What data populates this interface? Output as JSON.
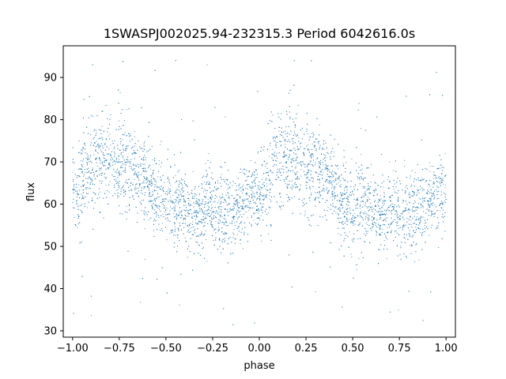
{
  "chart_data": {
    "type": "scatter",
    "title": "1SWASPJ002025.94-232315.3 Period 6042616.0s",
    "xlabel": "phase",
    "ylabel": "flux",
    "xlim": [
      -1.05,
      1.05
    ],
    "ylim": [
      28.5,
      97.5
    ],
    "x_ticks": [
      -1.0,
      -0.75,
      -0.5,
      -0.25,
      0.0,
      0.25,
      0.5,
      0.75,
      1.0
    ],
    "x_tick_labels": [
      "−1.00",
      "−0.75",
      "−0.50",
      "−0.25",
      "0.00",
      "0.25",
      "0.50",
      "0.75",
      "1.00"
    ],
    "y_ticks": [
      30,
      40,
      50,
      60,
      70,
      80,
      90
    ],
    "y_tick_labels": [
      "30",
      "40",
      "50",
      "60",
      "70",
      "80",
      "90"
    ],
    "grid": false,
    "marker_color": "#1f77b4",
    "series": [
      {
        "name": "",
        "phase": [
          -1.0,
          -0.97,
          -0.94,
          -0.91,
          -0.88,
          -0.85,
          -0.82,
          -0.79,
          -0.76,
          -0.73,
          -0.7,
          -0.67,
          -0.64,
          -0.61,
          -0.58,
          -0.55,
          -0.52,
          -0.49,
          -0.46,
          -0.43,
          -0.4,
          -0.37,
          -0.34,
          -0.31,
          -0.28,
          -0.25,
          -0.22,
          -0.19,
          -0.16,
          -0.13,
          -0.1,
          -0.07,
          -0.04,
          -0.01,
          0.02,
          0.05,
          0.08,
          0.11,
          0.14,
          0.17,
          0.2,
          0.23,
          0.26,
          0.29,
          0.32,
          0.35,
          0.38,
          0.41,
          0.44,
          0.47,
          0.5,
          0.53,
          0.56,
          0.59,
          0.62,
          0.65,
          0.68,
          0.71,
          0.74,
          0.77,
          0.8,
          0.83,
          0.86,
          0.89,
          0.92,
          0.95,
          0.98
        ],
        "flux_median": [
          63,
          62,
          66,
          70,
          69,
          70,
          70,
          71,
          69,
          70,
          70,
          68,
          67,
          66,
          63,
          62,
          60,
          60,
          59,
          60,
          60,
          58,
          57,
          58,
          60,
          58,
          57,
          58,
          58,
          58,
          60,
          61,
          62,
          61,
          63,
          66,
          70,
          69,
          70,
          70,
          71,
          69,
          70,
          70,
          68,
          67,
          66,
          63,
          62,
          60,
          60,
          59,
          60,
          60,
          58,
          57,
          58,
          60,
          58,
          57,
          58,
          58,
          58,
          60,
          61,
          62,
          63
        ],
        "flux_spread": [
          5,
          6,
          7,
          6,
          8,
          6,
          6,
          5,
          6,
          6,
          6,
          5,
          5,
          5,
          5,
          5,
          5,
          6,
          6,
          5,
          5,
          5,
          5,
          5,
          5,
          5,
          5,
          5,
          5,
          5,
          5,
          5,
          5,
          5,
          5,
          7,
          6,
          8,
          6,
          6,
          5,
          6,
          6,
          6,
          5,
          5,
          5,
          5,
          5,
          5,
          6,
          6,
          5,
          5,
          5,
          5,
          5,
          5,
          5,
          5,
          5,
          5,
          5,
          5,
          5,
          5,
          5
        ],
        "flux_min": 31,
        "flux_max": 95
      }
    ]
  }
}
